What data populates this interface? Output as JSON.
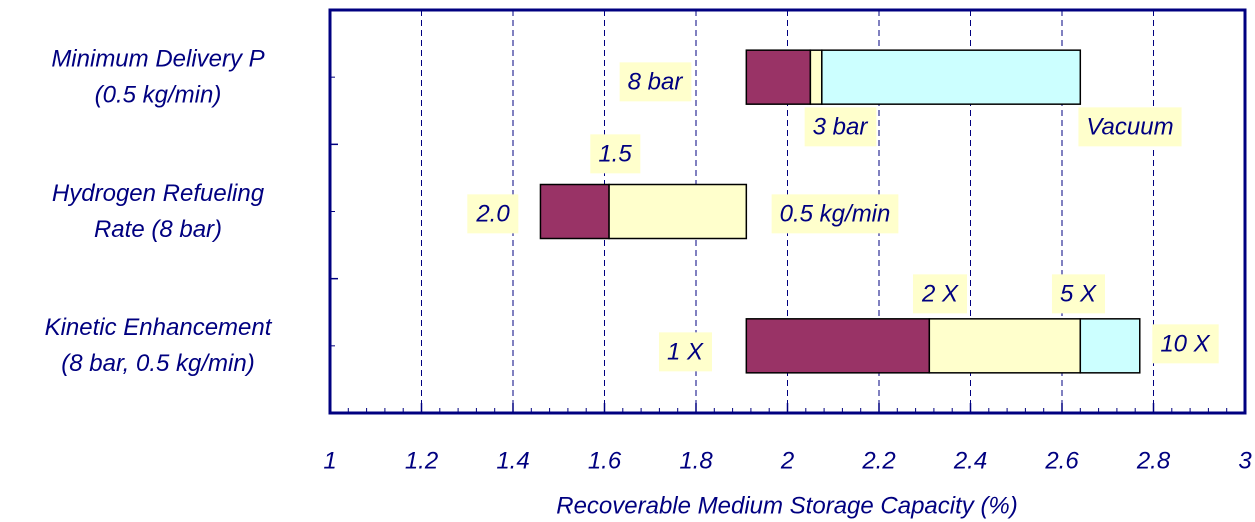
{
  "chart_data": {
    "type": "floating_bar",
    "xlabel": "Recoverable Medium Storage Capacity (%)",
    "xlim": [
      1,
      3
    ],
    "xticks": [
      1,
      1.2,
      1.4,
      1.6,
      1.8,
      2,
      2.2,
      2.4,
      2.6,
      2.8,
      3
    ],
    "grid": true,
    "colors": [
      "#993366",
      "#ffffcc",
      "#ccffff"
    ],
    "rows": [
      {
        "category": [
          "Minimum Delivery P",
          "(0.5 kg/min)"
        ],
        "bounds": [
          1.91,
          2.05,
          2.075,
          2.64
        ],
        "labels": [
          "8 bar",
          "3 bar",
          "Vacuum"
        ]
      },
      {
        "category": [
          "Hydrogen Refueling",
          "Rate (8 bar)"
        ],
        "bounds": [
          1.46,
          1.61,
          1.91
        ],
        "labels": [
          "2.0",
          "1.5",
          "0.5 kg/min"
        ]
      },
      {
        "category": [
          "Kinetic Enhancement",
          "(8 bar, 0.5 kg/min)"
        ],
        "bounds": [
          1.91,
          2.31,
          2.64,
          2.77
        ],
        "labels": [
          "1 X",
          "2 X",
          "5 X",
          "10 X"
        ]
      }
    ]
  }
}
